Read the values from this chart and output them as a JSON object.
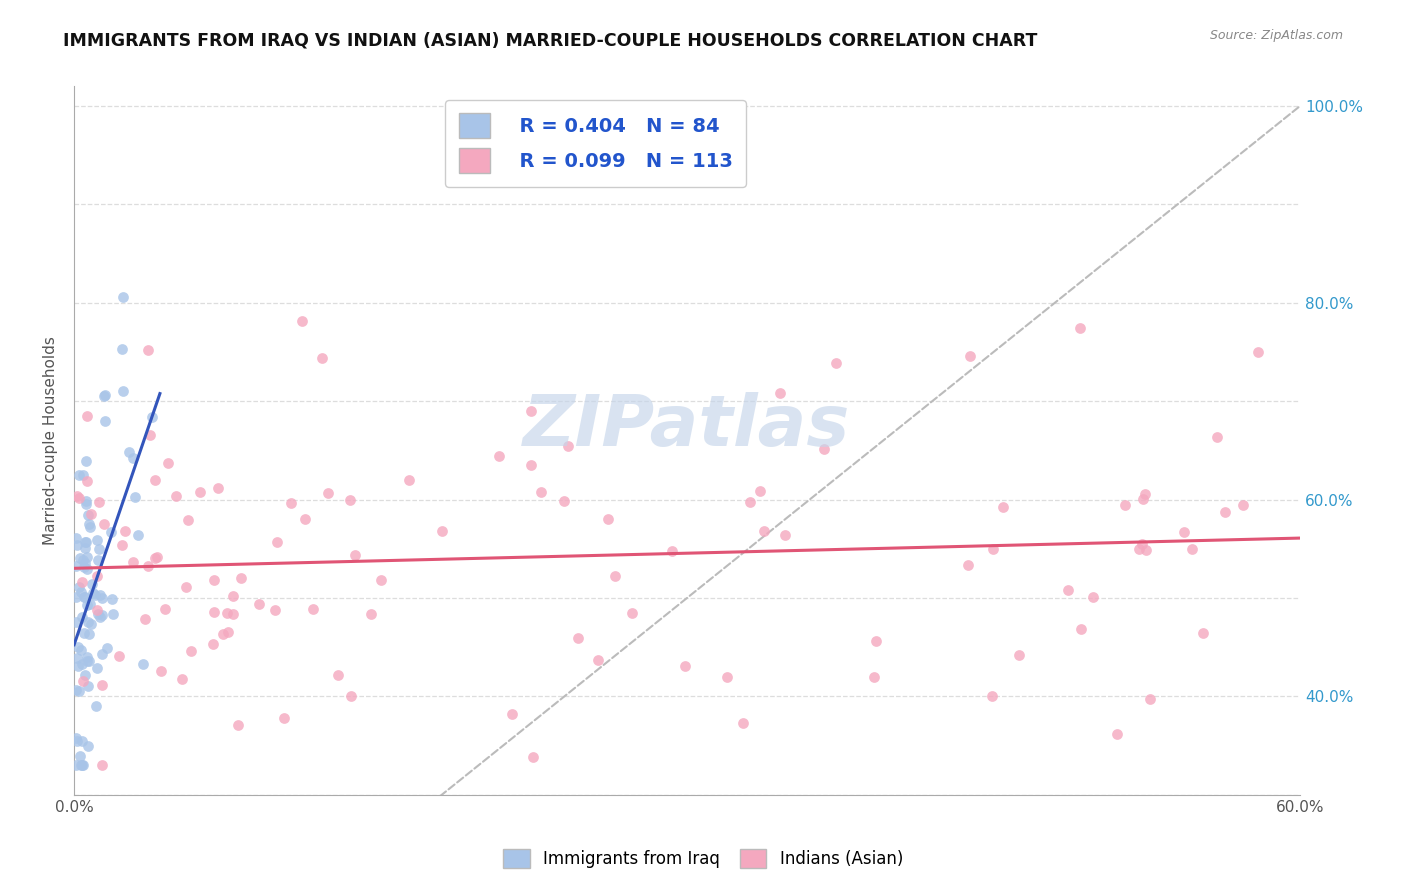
{
  "title": "IMMIGRANTS FROM IRAQ VS INDIAN (ASIAN) MARRIED-COUPLE HOUSEHOLDS CORRELATION CHART",
  "source": "Source: ZipAtlas.com",
  "ylabel": "Married-couple Households",
  "xlim": [
    0.0,
    0.6
  ],
  "ylim": [
    0.3,
    1.02
  ],
  "xtick_positions": [
    0.0,
    0.1,
    0.2,
    0.3,
    0.4,
    0.5,
    0.6
  ],
  "xticklabels": [
    "0.0%",
    "",
    "",
    "",
    "",
    "",
    "60.0%"
  ],
  "ytick_positions": [
    0.3,
    0.4,
    0.5,
    0.6,
    0.7,
    0.8,
    0.9,
    1.0
  ],
  "ytick_labels_right": [
    "",
    "40.0%",
    "",
    "60.0%",
    "",
    "80.0%",
    "",
    "100.0%"
  ],
  "legend_r1": "R = 0.404",
  "legend_n1": "N = 84",
  "legend_r2": "R = 0.099",
  "legend_n2": "N = 113",
  "color_iraq": "#a8c4e8",
  "color_indian": "#f4a8bf",
  "trendline_color_iraq": "#3355bb",
  "trendline_color_indian": "#e05575",
  "diagonal_color": "#bbbbbb",
  "watermark": "ZIPatlas",
  "watermark_color": "#c5d5ea",
  "background": "#ffffff",
  "grid_color": "#dddddd",
  "title_color": "#111111",
  "source_color": "#888888",
  "ylabel_color": "#555555",
  "right_tick_color": "#3399cc",
  "legend_text_color": "#2255cc"
}
